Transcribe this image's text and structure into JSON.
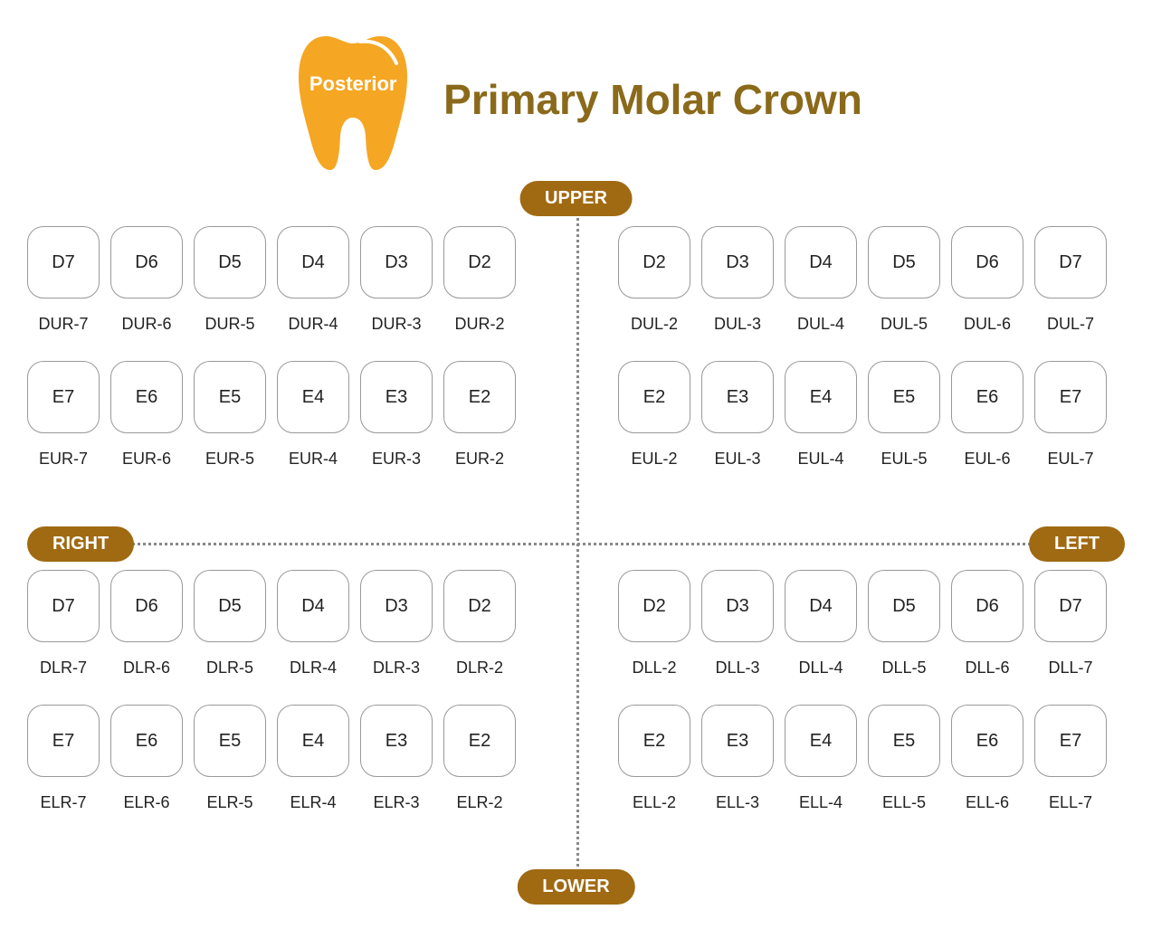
{
  "colors": {
    "accent": "#a06a12",
    "tooth": "#f5a623",
    "title": "#8a6a1a",
    "box_border": "#999999",
    "dot": "#888888",
    "bg": "#ffffff"
  },
  "header": {
    "tooth_label": "Posterior",
    "title": "Primary Molar Crown"
  },
  "labels": {
    "upper": "UPPER",
    "lower": "LOWER",
    "right": "RIGHT",
    "left": "LEFT"
  },
  "quadrants": {
    "upper_right": {
      "row_d": [
        {
          "box": "D7",
          "code": "DUR-7"
        },
        {
          "box": "D6",
          "code": "DUR-6"
        },
        {
          "box": "D5",
          "code": "DUR-5"
        },
        {
          "box": "D4",
          "code": "DUR-4"
        },
        {
          "box": "D3",
          "code": "DUR-3"
        },
        {
          "box": "D2",
          "code": "DUR-2"
        }
      ],
      "row_e": [
        {
          "box": "E7",
          "code": "EUR-7"
        },
        {
          "box": "E6",
          "code": "EUR-6"
        },
        {
          "box": "E5",
          "code": "EUR-5"
        },
        {
          "box": "E4",
          "code": "EUR-4"
        },
        {
          "box": "E3",
          "code": "EUR-3"
        },
        {
          "box": "E2",
          "code": "EUR-2"
        }
      ]
    },
    "upper_left": {
      "row_d": [
        {
          "box": "D2",
          "code": "DUL-2"
        },
        {
          "box": "D3",
          "code": "DUL-3"
        },
        {
          "box": "D4",
          "code": "DUL-4"
        },
        {
          "box": "D5",
          "code": "DUL-5"
        },
        {
          "box": "D6",
          "code": "DUL-6"
        },
        {
          "box": "D7",
          "code": "DUL-7"
        }
      ],
      "row_e": [
        {
          "box": "E2",
          "code": "EUL-2"
        },
        {
          "box": "E3",
          "code": "EUL-3"
        },
        {
          "box": "E4",
          "code": "EUL-4"
        },
        {
          "box": "E5",
          "code": "EUL-5"
        },
        {
          "box": "E6",
          "code": "EUL-6"
        },
        {
          "box": "E7",
          "code": "EUL-7"
        }
      ]
    },
    "lower_right": {
      "row_d": [
        {
          "box": "D7",
          "code": "DLR-7"
        },
        {
          "box": "D6",
          "code": "DLR-6"
        },
        {
          "box": "D5",
          "code": "DLR-5"
        },
        {
          "box": "D4",
          "code": "DLR-4"
        },
        {
          "box": "D3",
          "code": "DLR-3"
        },
        {
          "box": "D2",
          "code": "DLR-2"
        }
      ],
      "row_e": [
        {
          "box": "E7",
          "code": "ELR-7"
        },
        {
          "box": "E6",
          "code": "ELR-6"
        },
        {
          "box": "E5",
          "code": "ELR-5"
        },
        {
          "box": "E4",
          "code": "ELR-4"
        },
        {
          "box": "E3",
          "code": "ELR-3"
        },
        {
          "box": "E2",
          "code": "ELR-2"
        }
      ]
    },
    "lower_left": {
      "row_d": [
        {
          "box": "D2",
          "code": "DLL-2"
        },
        {
          "box": "D3",
          "code": "DLL-3"
        },
        {
          "box": "D4",
          "code": "DLL-4"
        },
        {
          "box": "D5",
          "code": "DLL-5"
        },
        {
          "box": "D6",
          "code": "DLL-6"
        },
        {
          "box": "D7",
          "code": "DLL-7"
        }
      ],
      "row_e": [
        {
          "box": "E2",
          "code": "ELL-2"
        },
        {
          "box": "E3",
          "code": "ELL-3"
        },
        {
          "box": "E4",
          "code": "ELL-4"
        },
        {
          "box": "E5",
          "code": "ELL-5"
        },
        {
          "box": "E6",
          "code": "ELL-6"
        },
        {
          "box": "E7",
          "code": "ELL-7"
        }
      ]
    }
  }
}
